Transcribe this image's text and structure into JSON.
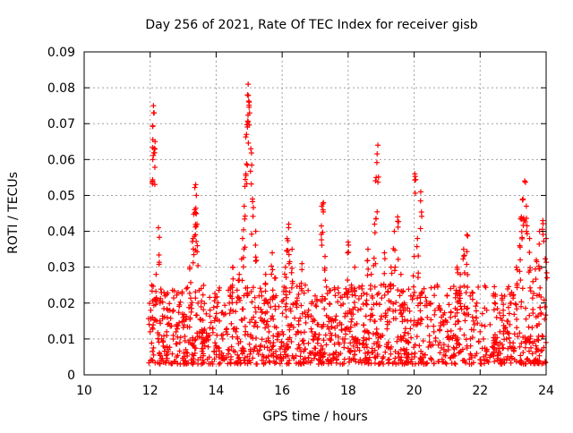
{
  "chart_data": {
    "type": "scatter",
    "title": "Day 256 of 2021, Rate Of TEC Index for receiver gisb",
    "xlabel": "GPS time / hours",
    "ylabel": "ROTI / TECUs",
    "xlim": [
      10,
      24
    ],
    "ylim": [
      0,
      0.09
    ],
    "xticks": [
      "10",
      "12",
      "14",
      "16",
      "18",
      "20",
      "22",
      "24"
    ],
    "yticks": [
      "0",
      "0.01",
      "0.02",
      "0.03",
      "0.04",
      "0.05",
      "0.06",
      "0.07",
      "0.08",
      "0.09"
    ],
    "grid": true,
    "marker": "plus",
    "series_color": "#ff0000",
    "series": [
      {
        "name": "ROTI",
        "x": [
          12.0,
          12.02,
          12.05,
          12.08,
          12.1,
          12.12,
          12.15,
          12.18,
          12.2,
          12.25,
          12.3,
          12.35,
          12.4,
          12.45,
          12.5,
          12.55,
          12.6,
          12.7,
          12.8,
          12.9,
          13.0,
          13.1,
          13.2,
          13.3,
          13.35,
          13.38,
          13.4,
          13.42,
          13.45,
          13.5,
          13.6,
          13.7,
          13.8,
          13.9,
          14.0,
          14.1,
          14.2,
          14.3,
          14.4,
          14.5,
          14.6,
          14.7,
          14.8,
          14.85,
          14.9,
          14.92,
          14.95,
          14.97,
          15.0,
          15.05,
          15.1,
          15.2,
          15.3,
          15.4,
          15.5,
          15.6,
          15.7,
          15.8,
          15.9,
          16.0,
          16.1,
          16.15,
          16.2,
          16.3,
          16.4,
          16.5,
          16.6,
          16.7,
          16.8,
          16.9,
          17.0,
          17.1,
          17.2,
          17.25,
          17.3,
          17.4,
          17.5,
          17.6,
          17.7,
          17.8,
          17.9,
          18.0,
          18.1,
          18.2,
          18.3,
          18.4,
          18.5,
          18.6,
          18.7,
          18.8,
          18.85,
          18.9,
          19.0,
          19.1,
          19.2,
          19.3,
          19.4,
          19.5,
          19.6,
          19.7,
          19.8,
          19.9,
          20.0,
          20.02,
          20.1,
          20.2,
          20.3,
          20.4,
          20.5,
          20.6,
          20.7,
          20.8,
          20.9,
          21.0,
          21.1,
          21.2,
          21.3,
          21.4,
          21.5,
          21.6,
          21.7,
          21.8,
          21.9,
          22.0,
          22.1,
          22.2,
          22.3,
          22.4,
          22.5,
          22.6,
          22.7,
          22.8,
          22.9,
          23.0,
          23.1,
          23.2,
          23.25,
          23.3,
          23.35,
          23.4,
          23.5,
          23.6,
          23.7,
          23.8,
          23.9,
          24.0
        ],
        "y": [
          0.012,
          0.018,
          0.025,
          0.06,
          0.075,
          0.073,
          0.065,
          0.028,
          0.015,
          0.041,
          0.02,
          0.01,
          0.008,
          0.022,
          0.012,
          0.007,
          0.018,
          0.011,
          0.014,
          0.009,
          0.016,
          0.024,
          0.03,
          0.038,
          0.046,
          0.053,
          0.05,
          0.042,
          0.02,
          0.012,
          0.009,
          0.017,
          0.011,
          0.013,
          0.008,
          0.015,
          0.01,
          0.012,
          0.02,
          0.03,
          0.012,
          0.028,
          0.038,
          0.047,
          0.056,
          0.067,
          0.078,
          0.081,
          0.076,
          0.063,
          0.049,
          0.04,
          0.022,
          0.015,
          0.028,
          0.012,
          0.034,
          0.027,
          0.019,
          0.012,
          0.03,
          0.038,
          0.042,
          0.035,
          0.02,
          0.015,
          0.031,
          0.025,
          0.018,
          0.012,
          0.022,
          0.014,
          0.047,
          0.048,
          0.033,
          0.016,
          0.011,
          0.013,
          0.009,
          0.014,
          0.01,
          0.037,
          0.025,
          0.03,
          0.018,
          0.022,
          0.012,
          0.035,
          0.028,
          0.042,
          0.055,
          0.064,
          0.025,
          0.034,
          0.018,
          0.03,
          0.04,
          0.044,
          0.028,
          0.02,
          0.015,
          0.022,
          0.033,
          0.056,
          0.038,
          0.051,
          0.024,
          0.016,
          0.02,
          0.012,
          0.025,
          0.018,
          0.014,
          0.022,
          0.016,
          0.011,
          0.03,
          0.028,
          0.035,
          0.039,
          0.022,
          0.015,
          0.02,
          0.012,
          0.01,
          0.018,
          0.014,
          0.022,
          0.016,
          0.012,
          0.018,
          0.01,
          0.014,
          0.022,
          0.03,
          0.036,
          0.044,
          0.049,
          0.054,
          0.047,
          0.038,
          0.026,
          0.032,
          0.04,
          0.043,
          0.038
        ],
        "baseline_band": {
          "x_start": 11.95,
          "x_end": 24.0,
          "y_min": 0.003,
          "y_max": 0.025
        }
      }
    ]
  }
}
